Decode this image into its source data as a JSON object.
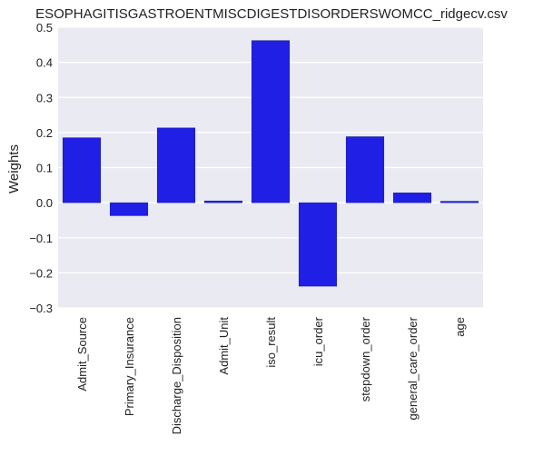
{
  "chart_data": {
    "type": "bar",
    "title": "ESOPHAGITISGASTROENTMISCDIGESTDISORDERSWOMCC_ridgecv.csv",
    "xlabel": "",
    "ylabel": "Weights",
    "ylim": [
      -0.3,
      0.5
    ],
    "yticks": [
      "0.5",
      "0.4",
      "0.3",
      "0.2",
      "0.1",
      "0.0",
      "−0.1",
      "−0.2",
      "−0.3"
    ],
    "ytick_values": [
      0.5,
      0.4,
      0.3,
      0.2,
      0.1,
      0.0,
      -0.1,
      -0.2,
      -0.3
    ],
    "grid": true,
    "bar_color": "#1f1fe6",
    "background_color": "#eaeaf2",
    "categories": [
      "Admit_Source",
      "Primary_Insurance",
      "Discharge_Disposition",
      "Admit_Unit",
      "iso_result",
      "icu_order",
      "stepdown_order",
      "general_care_order",
      "age"
    ],
    "values": [
      0.185,
      -0.037,
      0.213,
      0.005,
      0.462,
      -0.238,
      0.188,
      0.028,
      0.004
    ]
  }
}
